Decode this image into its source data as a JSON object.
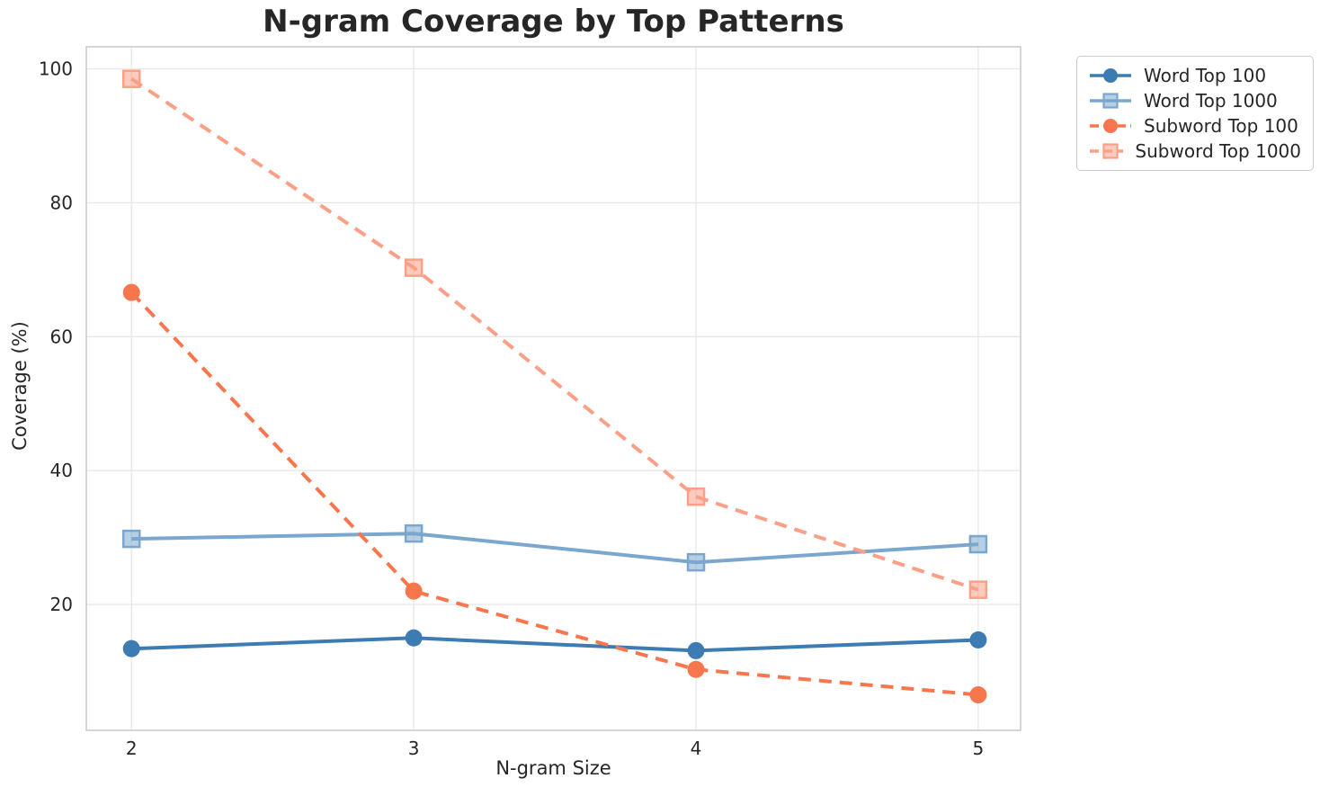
{
  "chart_data": {
    "type": "line",
    "title": "N-gram Coverage by Top Patterns",
    "xlabel": "N-gram Size",
    "ylabel": "Coverage (%)",
    "x": [
      2,
      3,
      4,
      5
    ],
    "xticks": [
      "2",
      "3",
      "4",
      "5"
    ],
    "yticks": [
      20,
      40,
      60,
      80,
      100
    ],
    "xlim": [
      1.84,
      5.15
    ],
    "ylim": [
      1.2,
      103.3
    ],
    "grid": true,
    "legend_position": "outside-top-right",
    "series": [
      {
        "name": "Word Top 100",
        "values": [
          13.4,
          15.0,
          13.1,
          14.7
        ],
        "color": "#3c7cb3",
        "linestyle": "solid",
        "marker": "circle"
      },
      {
        "name": "Word Top 1000",
        "values": [
          29.8,
          30.6,
          26.3,
          29.0
        ],
        "color": "#7ba7cf",
        "linestyle": "solid",
        "marker": "square"
      },
      {
        "name": "Subword Top 100",
        "values": [
          66.6,
          22.0,
          10.3,
          6.5
        ],
        "color": "#f8764e",
        "linestyle": "dashed",
        "marker": "circle"
      },
      {
        "name": "Subword Top 1000",
        "values": [
          98.5,
          70.3,
          36.1,
          22.2
        ],
        "color": "#fba087",
        "linestyle": "dashed",
        "marker": "square"
      }
    ]
  },
  "colors": {
    "text": "#262626",
    "grid": "#e7e7e7",
    "spine": "#c8c8c8",
    "legend_border": "#cccccc",
    "background": "#ffffff"
  }
}
